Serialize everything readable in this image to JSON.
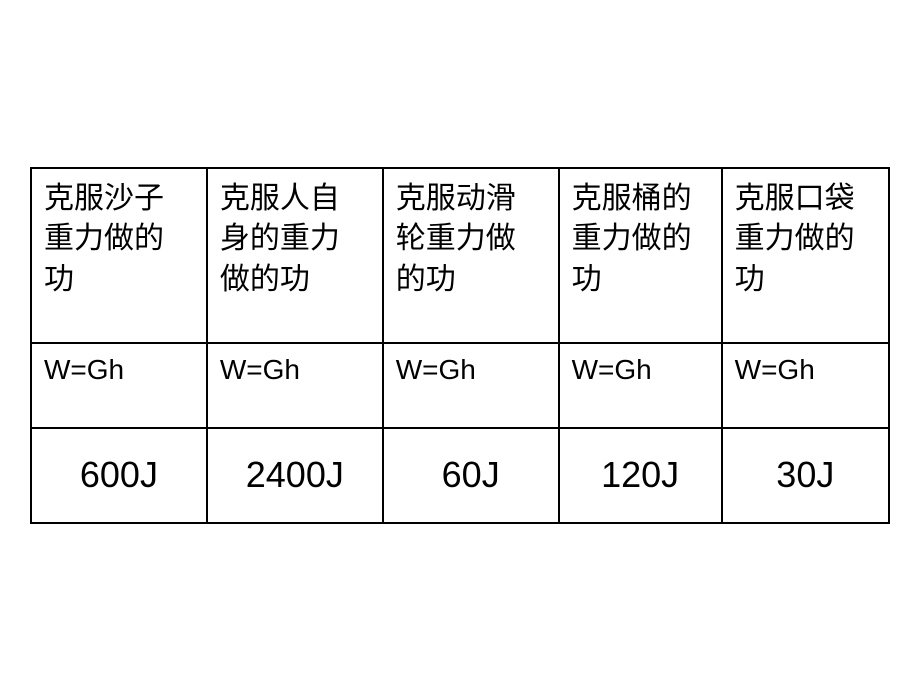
{
  "table": {
    "columns": [
      {
        "header": "克服沙子重力做的功",
        "formula": "W=Gh",
        "value": "600J"
      },
      {
        "header": "克服人自身的重力做的功",
        "formula": "W=Gh",
        "value": "2400J"
      },
      {
        "header": "克服动滑轮重力做的功",
        "formula": "W=Gh",
        "value": "60J"
      },
      {
        "header": "克服桶的重力做的功",
        "formula": "W=Gh",
        "value": "120J"
      },
      {
        "header": "克服口袋重力做的功",
        "formula": "W=Gh",
        "value": "30J"
      }
    ],
    "border_color": "#000000",
    "background_color": "#ffffff",
    "text_color": "#000000",
    "header_fontsize": 30,
    "formula_fontsize": 28,
    "value_fontsize": 36
  }
}
